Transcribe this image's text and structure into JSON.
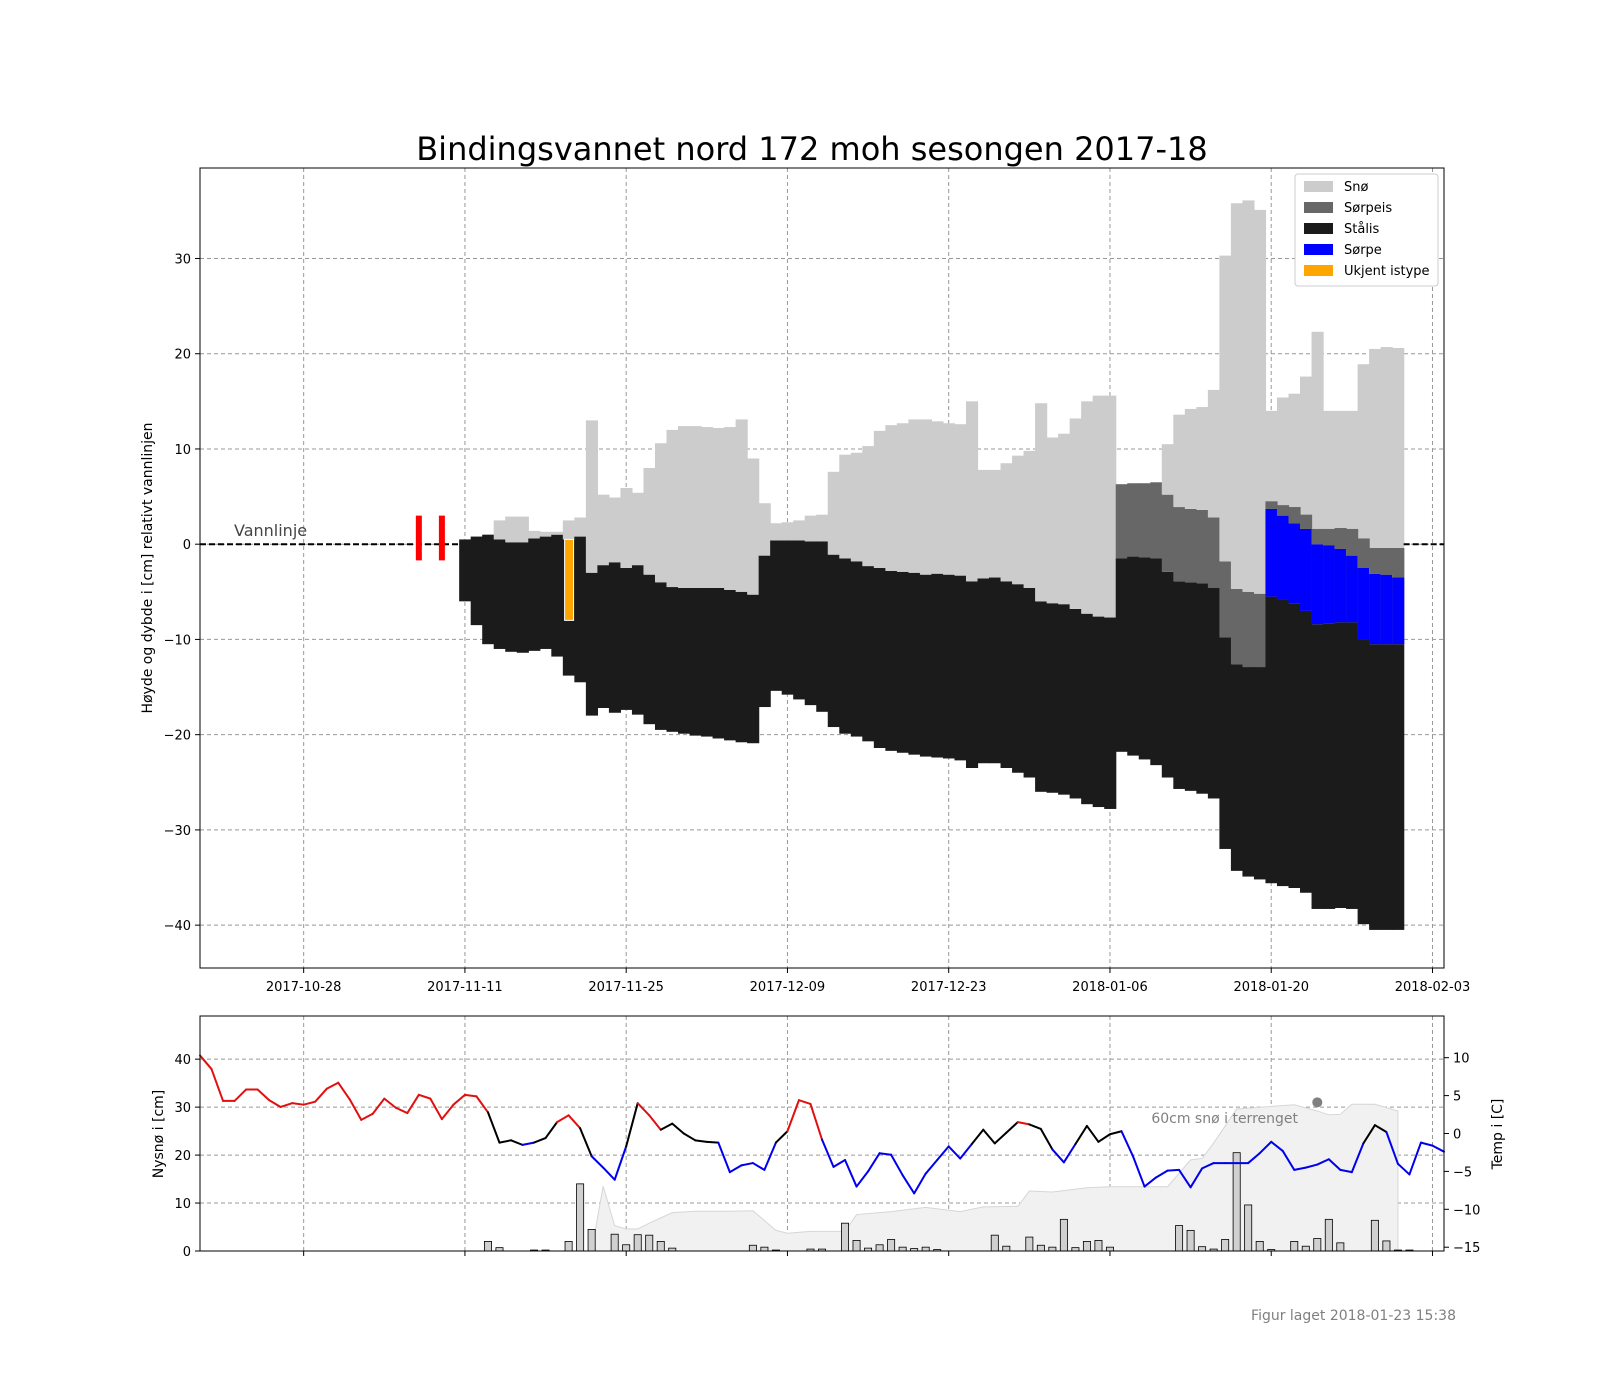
{
  "chart_data": [
    {
      "type": "area",
      "title": "Bindingsvannet nord 172 moh sesongen 2017-18",
      "ylabel": "Høyde og dybde i [cm] relativt vannlinjen",
      "xlabel": "",
      "xlim": [
        "2017-10-19",
        "2018-02-04"
      ],
      "ylim": [
        -44.5,
        39.5
      ],
      "yticks": [
        -40,
        -30,
        -20,
        -10,
        0,
        10,
        20,
        30
      ],
      "xticks": [
        "2017-10-28",
        "2017-11-11",
        "2017-11-25",
        "2017-12-09",
        "2017-12-23",
        "2018-01-06",
        "2018-01-20",
        "2018-02-03"
      ],
      "grid": true,
      "legend_position": "top-right",
      "legend": [
        {
          "name": "Snø",
          "color": "#cccccc"
        },
        {
          "name": "Sørpeis",
          "color": "#676767"
        },
        {
          "name": "Stålis",
          "color": "#1b1b1b"
        },
        {
          "name": "Sørpe",
          "color": "#0000ff"
        },
        {
          "name": "Ukjent istype",
          "color": "#ffa500"
        }
      ],
      "waterline_label": "Vannlinje",
      "open_water_markers": [
        "2017-11-07",
        "2017-11-09"
      ],
      "unknown_ice": {
        "date": "2017-11-20",
        "top": 0.5,
        "bottom": -8
      },
      "daily_layers": {
        "start_date": "2017-11-11",
        "fields": [
          "snow_top",
          "slush_ice_top",
          "slush_top",
          "black_ice_top",
          "black_ice_bottom"
        ],
        "days": [
          [
            null,
            null,
            null,
            0.5,
            -6
          ],
          [
            null,
            null,
            null,
            0.8,
            -8.5
          ],
          [
            null,
            null,
            null,
            1.0,
            -10.5
          ],
          [
            2.5,
            null,
            null,
            0.5,
            -11
          ],
          [
            2.9,
            null,
            null,
            0.2,
            -11.3
          ],
          [
            2.9,
            null,
            null,
            0.2,
            -11.4
          ],
          [
            1.4,
            null,
            null,
            0.6,
            -11.2
          ],
          [
            1.3,
            null,
            null,
            0.8,
            -11
          ],
          [
            1.3,
            null,
            null,
            1.0,
            -11.8
          ],
          [
            2.5,
            null,
            null,
            0.5,
            -13.8
          ],
          [
            2.8,
            null,
            null,
            0.8,
            -14.5
          ],
          [
            13,
            null,
            null,
            -3,
            -18
          ],
          [
            5.2,
            null,
            null,
            -2.2,
            -17.2
          ],
          [
            4.9,
            null,
            null,
            -1.9,
            -17.7
          ],
          [
            5.9,
            null,
            null,
            -2.5,
            -17.4
          ],
          [
            5.4,
            null,
            null,
            -2.2,
            -17.9
          ],
          [
            8,
            null,
            null,
            -3.2,
            -18.9
          ],
          [
            10.6,
            null,
            null,
            -4,
            -19.5
          ],
          [
            12,
            null,
            null,
            -4.5,
            -19.7
          ],
          [
            12.4,
            null,
            null,
            -4.6,
            -19.9
          ],
          [
            12.4,
            null,
            null,
            -4.6,
            -20.1
          ],
          [
            12.3,
            null,
            null,
            -4.6,
            -20.2
          ],
          [
            12.2,
            null,
            null,
            -4.6,
            -20.4
          ],
          [
            12.3,
            null,
            null,
            -4.8,
            -20.6
          ],
          [
            13.1,
            null,
            null,
            -5,
            -20.8
          ],
          [
            9,
            null,
            null,
            -5.3,
            -20.9
          ],
          [
            4.3,
            null,
            null,
            -1.2,
            -17.1
          ],
          [
            2.2,
            null,
            null,
            0.4,
            -15.4
          ],
          [
            2.3,
            null,
            null,
            0.4,
            -15.8
          ],
          [
            2.5,
            null,
            null,
            0.4,
            -16.3
          ],
          [
            3.0,
            null,
            null,
            0.3,
            -16.9
          ],
          [
            3.1,
            null,
            null,
            0.3,
            -17.6
          ],
          [
            7.6,
            null,
            null,
            -1.1,
            -19.2
          ],
          [
            9.4,
            null,
            null,
            -1.5,
            -19.9
          ],
          [
            9.6,
            null,
            null,
            -1.8,
            -20.2
          ],
          [
            10.3,
            null,
            null,
            -2.3,
            -20.7
          ],
          [
            11.9,
            null,
            null,
            -2.5,
            -21.4
          ],
          [
            12.5,
            null,
            null,
            -2.8,
            -21.7
          ],
          [
            12.7,
            null,
            null,
            -2.9,
            -21.9
          ],
          [
            13.1,
            null,
            null,
            -3.0,
            -22.1
          ],
          [
            13.1,
            null,
            null,
            -3.2,
            -22.3
          ],
          [
            12.9,
            null,
            null,
            -3.1,
            -22.4
          ],
          [
            12.7,
            null,
            null,
            -3.2,
            -22.5
          ],
          [
            12.6,
            null,
            null,
            -3.3,
            -22.7
          ],
          [
            15,
            null,
            null,
            -3.9,
            -23.5
          ],
          [
            7.8,
            null,
            null,
            -3.6,
            -23
          ],
          [
            7.8,
            null,
            null,
            -3.5,
            -23
          ],
          [
            8.5,
            null,
            null,
            -3.9,
            -23.5
          ],
          [
            9.3,
            null,
            null,
            -4.2,
            -24
          ],
          [
            9.8,
            null,
            null,
            -4.6,
            -24.5
          ],
          [
            14.8,
            null,
            null,
            -6.0,
            -26
          ],
          [
            11.2,
            null,
            null,
            -6.2,
            -26.1
          ],
          [
            11.6,
            null,
            null,
            -6.3,
            -26.3
          ],
          [
            13.2,
            null,
            null,
            -6.8,
            -26.7
          ],
          [
            15,
            null,
            null,
            -7.3,
            -27.3
          ],
          [
            15.6,
            null,
            null,
            -7.6,
            -27.6
          ],
          [
            15.6,
            null,
            null,
            -7.7,
            -27.8
          ],
          [
            6.3,
            6.3,
            null,
            -1.5,
            -21.8
          ],
          [
            6.4,
            6.4,
            null,
            -1.3,
            -22.2
          ],
          [
            6.4,
            6.4,
            null,
            -1.4,
            -22.6
          ],
          [
            6.5,
            6.5,
            null,
            -1.5,
            -23.2
          ],
          [
            10.5,
            5.2,
            null,
            -2.9,
            -24.5
          ],
          [
            13.6,
            3.9,
            null,
            -3.9,
            -25.7
          ],
          [
            14.2,
            3.7,
            null,
            -4.0,
            -25.9
          ],
          [
            14.4,
            3.6,
            null,
            -4.1,
            -26.2
          ],
          [
            16.2,
            2.8,
            null,
            -4.6,
            -26.7
          ],
          [
            30.3,
            -1.8,
            null,
            -9.8,
            -32
          ],
          [
            35.8,
            -4.7,
            null,
            -12.6,
            -34.3
          ],
          [
            36.1,
            -5.0,
            null,
            -12.9,
            -34.9
          ],
          [
            35.1,
            -5.2,
            null,
            -12.9,
            -35.2
          ],
          [
            14.0,
            4.5,
            3.7,
            -5.5,
            -35.6
          ],
          [
            15.4,
            4.1,
            3.0,
            -5.8,
            -35.9
          ],
          [
            15.8,
            3.9,
            2.2,
            -6.2,
            -36.1
          ],
          [
            17.6,
            3.1,
            1.6,
            -7.0,
            -36.6
          ],
          [
            22.3,
            1.6,
            0.0,
            -8.4,
            -38.3
          ],
          [
            14.0,
            1.6,
            -0.1,
            -8.3,
            -38.3
          ],
          [
            14.0,
            1.7,
            -0.5,
            -8.2,
            -38.2
          ],
          [
            14.0,
            1.6,
            -1.2,
            -8.2,
            -38.3
          ],
          [
            18.9,
            0.6,
            -2.5,
            -10.0,
            -39.9
          ],
          [
            20.5,
            -0.4,
            -3.1,
            -10.5,
            -40.5
          ],
          [
            20.7,
            -0.4,
            -3.2,
            -10.5,
            -40.5
          ],
          [
            20.6,
            -0.4,
            -3.5,
            -10.5,
            -40.5
          ]
        ]
      }
    },
    {
      "type": "bar",
      "ylabel": "Nysnø i [cm]",
      "y2label": "Temp i [C]",
      "ylim": [
        0,
        49
      ],
      "y2lim": [
        -15.5,
        15.5
      ],
      "yticks": [
        0,
        10,
        20,
        30,
        40
      ],
      "y2ticks": [
        -15,
        -10,
        -5,
        0,
        5,
        10
      ],
      "grid": true,
      "annotation": "60cm snø i terrenget",
      "annotation_point": {
        "date": "2018-01-24",
        "snow_cm": 31
      },
      "temperature": {
        "start_date": "2017-10-19",
        "line_colors": {
          "warm": "#e01010",
          "near_zero": "#000000",
          "cold": "#0000ee"
        },
        "values": [
          10.3,
          8.5,
          4.3,
          4.3,
          5.8,
          5.8,
          4.4,
          3.5,
          4.0,
          3.8,
          4.2,
          5.9,
          6.7,
          4.5,
          1.8,
          2.6,
          4.6,
          3.4,
          2.7,
          5.1,
          4.6,
          1.9,
          3.8,
          5.1,
          4.9,
          2.8,
          -1.2,
          -0.9,
          -1.5,
          -1.2,
          -0.6,
          1.5,
          2.4,
          0.7,
          -3.0,
          -4.5,
          -6.1,
          -1.7,
          4.0,
          2.4,
          0.5,
          1.3,
          0.0,
          -0.9,
          -1.1,
          -1.2,
          -5.1,
          -4.2,
          -3.9,
          -4.8,
          -1.2,
          0.3,
          4.4,
          3.9,
          -0.8,
          -4.4,
          -3.5,
          -7.0,
          -5.0,
          -2.6,
          -2.8,
          -5.5,
          -7.9,
          -5.3,
          -3.5,
          -1.7,
          -3.3,
          -1.4,
          0.5,
          -1.3,
          0.1,
          1.5,
          1.2,
          0.6,
          -2.1,
          -3.8,
          -1.4,
          1.0,
          -1.1,
          -0.1,
          0.3,
          -3.0,
          -7.0,
          -5.8,
          -4.9,
          -4.8,
          -7.1,
          -4.6,
          -3.9,
          -3.9,
          -3.9,
          -3.9,
          -2.6,
          -1.1,
          -2.3,
          -4.8,
          -4.5,
          -4.1,
          -3.4,
          -4.8,
          -5.1,
          -1.3,
          1.1,
          0.2,
          -4.0,
          -5.4,
          -1.2,
          -1.6,
          -2.4
        ]
      },
      "new_snow": {
        "start_date": "2017-11-13",
        "values": [
          2,
          0.7,
          0,
          0,
          0.2,
          0.2,
          0,
          2,
          14,
          4.5,
          0,
          3.5,
          1.3,
          3.4,
          3.3,
          2,
          0.6,
          0,
          0,
          0,
          0,
          0,
          0,
          1.2,
          0.8,
          0.2,
          0,
          0,
          0.4,
          0.4,
          0,
          5.8,
          2.2,
          0.6,
          1.3,
          2.4,
          0.8,
          0.5,
          0.8,
          0.3,
          0,
          0,
          0,
          0,
          3.3,
          1,
          0,
          2.9,
          1.2,
          0.8,
          6.6,
          0.7,
          2,
          2.2,
          0.8,
          0,
          0,
          0,
          0,
          0,
          5.3,
          4.3,
          0.9,
          0.4,
          2.4,
          20.5,
          9.6,
          2,
          0.3,
          0,
          2,
          1,
          2.6,
          6.6,
          1.7,
          0,
          0,
          6.4,
          2.1,
          0.2,
          0.2
        ]
      },
      "snow_on_ground": {
        "dates": [
          "2017-11-11",
          "2017-11-22",
          "2017-11-23",
          "2017-11-24",
          "2017-11-25",
          "2017-11-26",
          "2017-11-27",
          "2017-11-29",
          "2017-12-01",
          "2017-12-04",
          "2017-12-06",
          "2017-12-08",
          "2017-12-09",
          "2017-12-11",
          "2017-12-14",
          "2017-12-15",
          "2017-12-18",
          "2017-12-21",
          "2017-12-24",
          "2017-12-26",
          "2017-12-29",
          "2017-12-30",
          "2018-01-01",
          "2018-01-04",
          "2018-01-06",
          "2018-01-10",
          "2018-01-11",
          "2018-01-13",
          "2018-01-14",
          "2018-01-15",
          "2018-01-17",
          "2018-01-22",
          "2018-01-24",
          "2018-01-25",
          "2018-01-26",
          "2018-01-27",
          "2018-01-29",
          "2018-01-31"
        ],
        "values": [
          0,
          0,
          13.5,
          5.3,
          4.6,
          4.6,
          5.8,
          8,
          8.3,
          8.3,
          8.4,
          4.3,
          3.7,
          4.1,
          4.1,
          7.6,
          8.2,
          9.1,
          8.2,
          9.2,
          9.3,
          12.5,
          12.3,
          13.2,
          13.4,
          13.4,
          13.4,
          19,
          19.3,
          22.5,
          29.6,
          30.5,
          29.2,
          28.4,
          28.5,
          30.6,
          30.6,
          29.2
        ]
      }
    }
  ],
  "footer": "Figur laget 2018-01-23 15:38"
}
